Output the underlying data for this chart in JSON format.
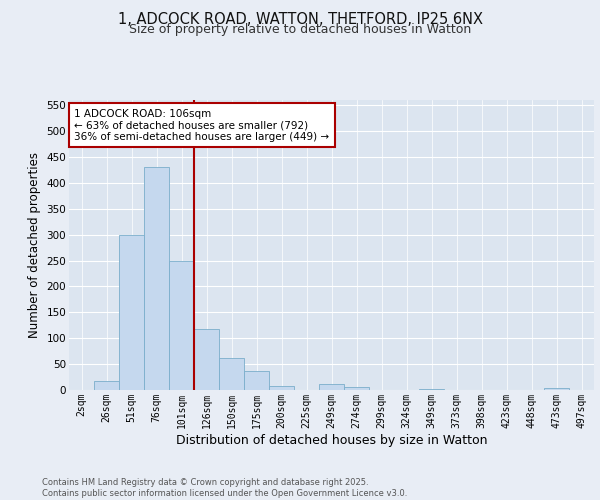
{
  "title": "1, ADCOCK ROAD, WATTON, THETFORD, IP25 6NX",
  "subtitle": "Size of property relative to detached houses in Watton",
  "xlabel": "Distribution of detached houses by size in Watton",
  "ylabel": "Number of detached properties",
  "categories": [
    "2sqm",
    "26sqm",
    "51sqm",
    "76sqm",
    "101sqm",
    "126sqm",
    "150sqm",
    "175sqm",
    "200sqm",
    "225sqm",
    "249sqm",
    "274sqm",
    "299sqm",
    "324sqm",
    "349sqm",
    "373sqm",
    "398sqm",
    "423sqm",
    "448sqm",
    "473sqm",
    "497sqm"
  ],
  "values": [
    0,
    18,
    300,
    430,
    250,
    118,
    62,
    37,
    8,
    0,
    12,
    5,
    0,
    0,
    2,
    0,
    0,
    0,
    0,
    4,
    0
  ],
  "bar_color": "#c5d8ee",
  "bar_edge_color": "#7aaecb",
  "vline_color": "#aa0000",
  "annotation_text": "1 ADCOCK ROAD: 106sqm\n← 63% of detached houses are smaller (792)\n36% of semi-detached houses are larger (449) →",
  "annotation_box_color": "#ffffff",
  "annotation_box_edge": "#aa0000",
  "background_color": "#e8edf5",
  "plot_bg_color": "#dce5f0",
  "grid_color": "#c8d4e4",
  "ylim": [
    0,
    560
  ],
  "yticks": [
    0,
    50,
    100,
    150,
    200,
    250,
    300,
    350,
    400,
    450,
    500,
    550
  ],
  "vline_bar_index": 4,
  "footer_text": "Contains HM Land Registry data © Crown copyright and database right 2025.\nContains public sector information licensed under the Open Government Licence v3.0."
}
